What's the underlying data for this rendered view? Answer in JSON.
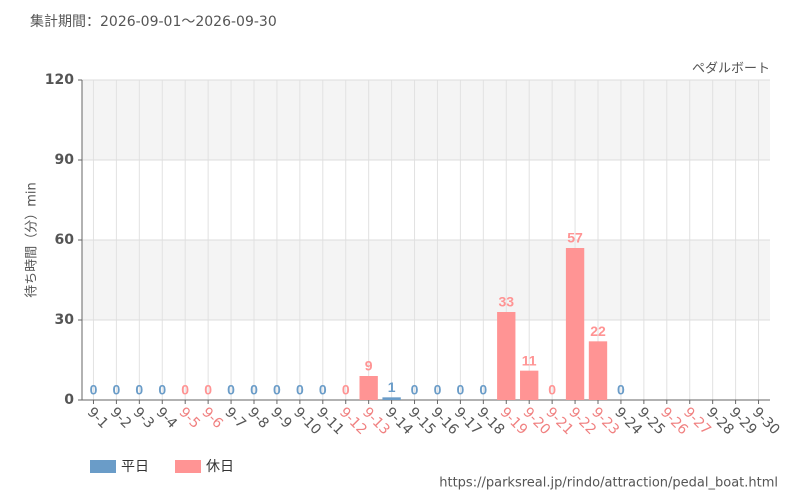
{
  "chart_data": {
    "type": "bar",
    "title": "集計期間：2026-09-01～2026-09-30",
    "subtitle": "ペダルボート",
    "y_label": "待ち時間（分）min",
    "source": "https://parksreal.jp/rindo/attraction/pedal_boat.html",
    "categories": [
      "9-1",
      "9-2",
      "9-3",
      "9-4",
      "9-5",
      "9-6",
      "9-7",
      "9-8",
      "9-9",
      "9-10",
      "9-11",
      "9-12",
      "9-13",
      "9-14",
      "9-15",
      "9-16",
      "9-17",
      "9-18",
      "9-19",
      "9-20",
      "9-21",
      "9-22",
      "9-23",
      "9-24",
      "9-25",
      "9-26",
      "9-27",
      "9-28",
      "9-29",
      "9-30"
    ],
    "category_colors": [
      "#555",
      "#555",
      "#555",
      "#555",
      "#f08080",
      "#f08080",
      "#555",
      "#555",
      "#555",
      "#555",
      "#555",
      "#f08080",
      "#f08080",
      "#555",
      "#555",
      "#555",
      "#555",
      "#555",
      "#f08080",
      "#f08080",
      "#f08080",
      "#f08080",
      "#f08080",
      "#555",
      "#555",
      "#f08080",
      "#f08080",
      "#555",
      "#555",
      "#555"
    ],
    "series": [
      {
        "name": "平日",
        "color": "#6a9cc8",
        "values": [
          0,
          0,
          0,
          0,
          null,
          null,
          0,
          0,
          0,
          0,
          0,
          null,
          null,
          1,
          0,
          0,
          0,
          0,
          null,
          null,
          null,
          null,
          null,
          0,
          null,
          null,
          null,
          null,
          null,
          null
        ]
      },
      {
        "name": "休日",
        "color": "#ff9494",
        "values": [
          null,
          null,
          null,
          null,
          0,
          0,
          null,
          null,
          null,
          null,
          null,
          0,
          9,
          null,
          null,
          null,
          null,
          null,
          33,
          11,
          0,
          57,
          22,
          null,
          null,
          null,
          null,
          null,
          null,
          null
        ]
      }
    ],
    "ylim": [
      0,
      120
    ],
    "yticks": [
      0,
      30,
      60,
      90,
      120
    ],
    "grid": true
  }
}
